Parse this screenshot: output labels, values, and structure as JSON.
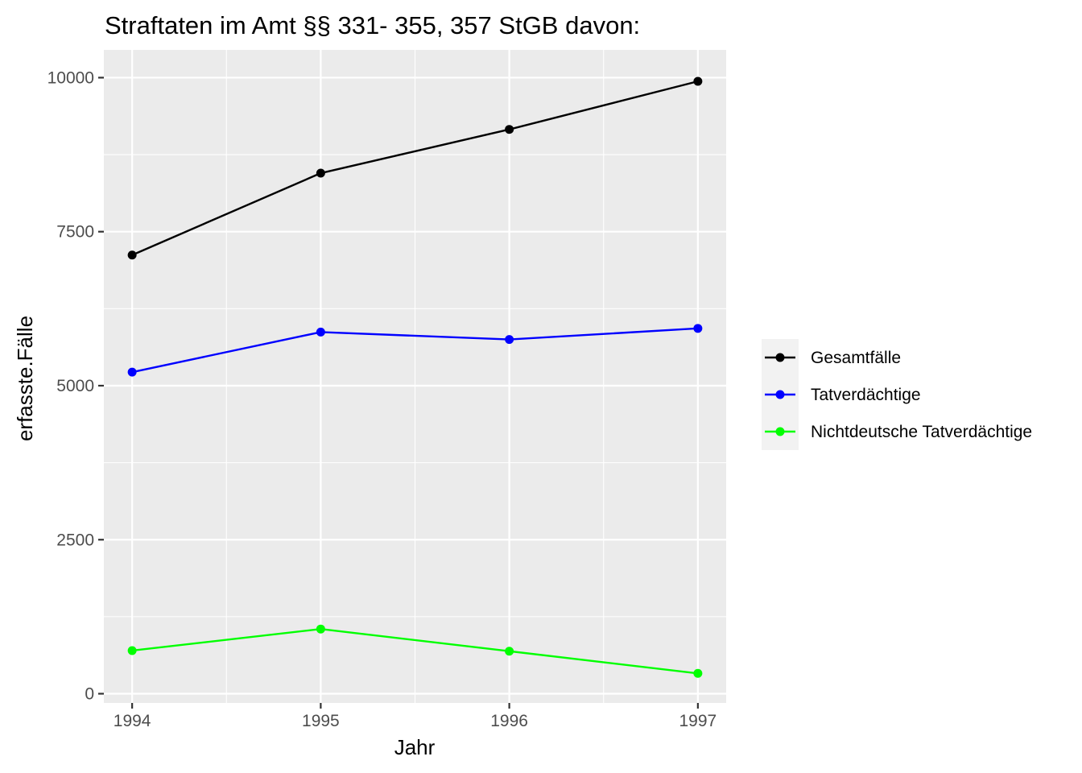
{
  "chart_data": {
    "type": "line",
    "title": "Straftaten im Amt §§ 331- 355, 357 StGB davon:",
    "xlabel": "Jahr",
    "ylabel": "erfasste.Fälle",
    "x": [
      1994,
      1995,
      1996,
      1997
    ],
    "x_ticks": [
      "1994",
      "1995",
      "1996",
      "1997"
    ],
    "y_ticks": [
      "0",
      "2500",
      "5000",
      "7500",
      "10000"
    ],
    "ylim": [
      -150,
      10450
    ],
    "xlim": [
      1993.85,
      1997.15
    ],
    "grid": true,
    "legend_position": "right",
    "series": [
      {
        "name": "Gesamtfälle",
        "color": "#000000",
        "values": [
          7120,
          8450,
          9160,
          9940
        ]
      },
      {
        "name": "Tatverdächtige",
        "color": "#0000ff",
        "values": [
          5220,
          5870,
          5750,
          5930
        ]
      },
      {
        "name": "Nichtdeutsche Tatverdächtige",
        "color": "#00ff00",
        "values": [
          700,
          1050,
          690,
          330
        ]
      }
    ]
  }
}
